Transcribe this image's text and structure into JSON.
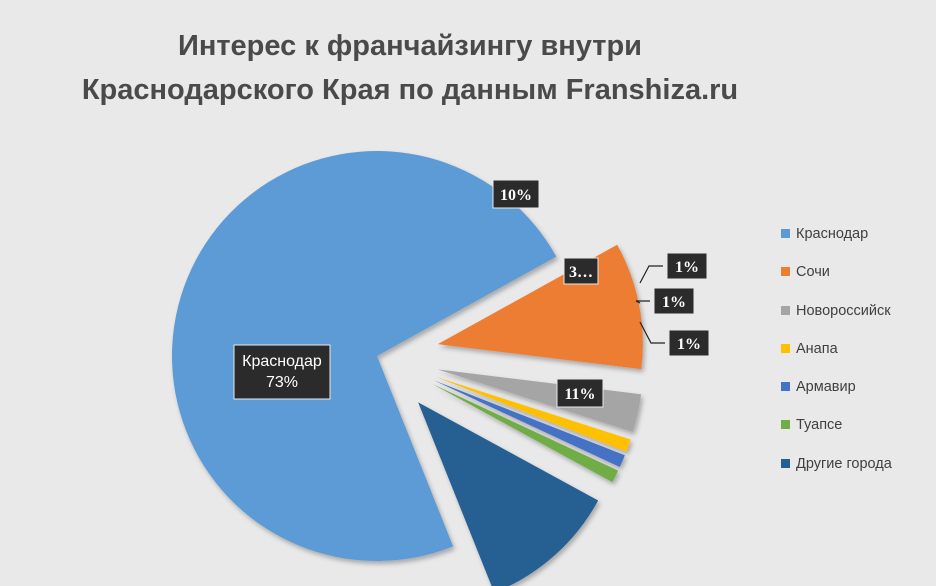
{
  "chart_data": {
    "type": "pie",
    "title_lines": [
      "Интерес к франчайзингу внутри",
      "Краснодарского Края по данным Franshiza.ru"
    ],
    "categories": [
      "Краснодар",
      "Сочи",
      "Новороссийск",
      "Анапа",
      "Армавир",
      "Туапсе",
      "Другие города"
    ],
    "values": [
      73,
      10,
      3,
      1,
      1,
      1,
      11
    ],
    "data_labels": [
      "73%",
      "10%",
      "3…",
      "1%",
      "1%",
      "1%",
      "11%"
    ],
    "category_label_on_slice": "Краснодар",
    "colors": [
      "#5b9bd5",
      "#ed7d31",
      "#a5a5a5",
      "#ffc000",
      "#4472c4",
      "#70ad47",
      "#255e91"
    ],
    "exploded": true,
    "legend_position": "right"
  }
}
